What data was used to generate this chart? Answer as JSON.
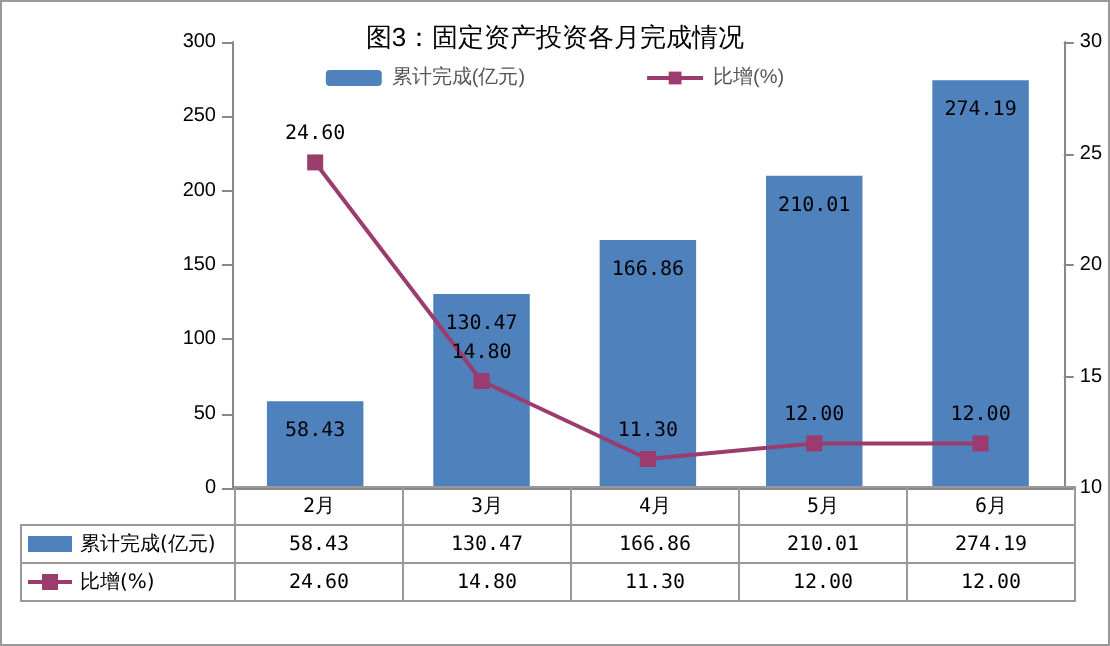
{
  "chart_data": {
    "type": "bar",
    "title": "图3：固定资产投资各月完成情况",
    "categories": [
      "2月",
      "3月",
      "4月",
      "5月",
      "6月"
    ],
    "series": [
      {
        "name": "累计完成(亿元)",
        "color": "#4f81bd",
        "values": [
          58.43,
          130.47,
          166.86,
          210.01,
          274.19
        ],
        "value_labels": [
          "58.43",
          "130.47",
          "166.86",
          "210.01",
          "274.19"
        ]
      },
      {
        "name": "比增(%)",
        "type": "line",
        "axis": "y2",
        "color": "#9b3b6e",
        "marker": "square",
        "values": [
          24.6,
          14.8,
          11.3,
          12.0,
          12.0
        ],
        "value_labels": [
          "24.60",
          "14.80",
          "11.30",
          "12.00",
          "12.00"
        ]
      }
    ],
    "ylim": [
      0,
      300
    ],
    "yticks": [
      0,
      50,
      100,
      150,
      200,
      250,
      300
    ],
    "y2lim": [
      10,
      30
    ],
    "y2ticks": [
      10,
      15,
      20,
      25,
      30
    ],
    "legend": "top",
    "grid": false
  }
}
